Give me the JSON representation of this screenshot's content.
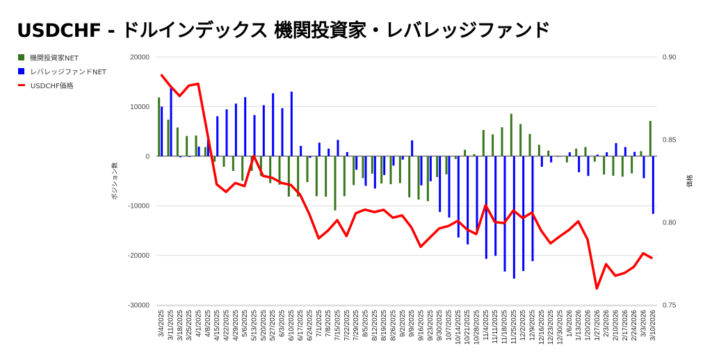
{
  "title": "USDCHF - ドルインデックス 機関投資家・レバレッジファンド",
  "colors": {
    "institutional": "#38761d",
    "leveraged": "#0000ff",
    "price": "#ff0000"
  },
  "chart_data": {
    "type": "bar+line",
    "title": "USDCHF - ドルインデックス 機関投資家・レバレッジファンド",
    "ylabel_left": "ポジション数",
    "ylabel_right": "価格",
    "ylim_left": [
      -30000,
      20000
    ],
    "yticks_left": [
      "20000",
      "10000",
      "0",
      "-10000",
      "-20000",
      "-30000"
    ],
    "ylim_right": [
      0.75,
      0.9
    ],
    "yticks_right": [
      "0.90",
      "0.85",
      "0.80",
      "0.75"
    ],
    "legend_position": "top-left",
    "categories": [
      "3/4/2025",
      "3/11/2025",
      "3/18/2025",
      "3/25/2025",
      "4/1/2025",
      "4/8/2025",
      "4/15/2025",
      "4/22/2025",
      "4/29/2025",
      "5/6/2025",
      "5/13/2025",
      "5/20/2025",
      "5/27/2025",
      "6/3/2025",
      "6/10/2025",
      "6/17/2025",
      "6/24/2025",
      "7/1/2025",
      "7/8/2025",
      "7/15/2025",
      "7/22/2025",
      "7/29/2025",
      "8/5/2025",
      "8/12/2025",
      "8/19/2025",
      "8/26/2025",
      "9/2/2025",
      "9/9/2025",
      "9/16/2025",
      "9/23/2025",
      "9/30/2025",
      "10/7/2025",
      "10/14/2025",
      "10/21/2025",
      "10/28/2025",
      "11/4/2025",
      "11/11/2025",
      "11/18/2025",
      "11/25/2025",
      "12/2/2025",
      "12/9/2025",
      "12/16/2025",
      "12/23/2025",
      "12/30/2025",
      "1/6/2026",
      "1/13/2026",
      "1/20/2026",
      "1/27/2026",
      "2/3/2026",
      "2/10/2026",
      "2/17/2026",
      "2/24/2026",
      "3/3/2026",
      "3/10/2026"
    ],
    "series": [
      {
        "name": "機関投資家NET",
        "type": "bar",
        "axis": "left",
        "values": [
          11850,
          7360,
          5790,
          4070,
          4170,
          1850,
          -1110,
          -2130,
          -2960,
          -4950,
          -2960,
          -3980,
          -5420,
          -5740,
          -8150,
          -8150,
          -5230,
          -8060,
          -8150,
          -10930,
          -8060,
          -5830,
          -4440,
          -3520,
          -5510,
          -5650,
          -5420,
          -8290,
          -8750,
          -9070,
          -4210,
          -3660,
          -560,
          1300,
          420,
          5280,
          4400,
          5830,
          8560,
          6480,
          4490,
          2310,
          1110,
          -140,
          -1250,
          1530,
          1850,
          -1110,
          -3700,
          -3940,
          -4120,
          -3470,
          1020,
          7130
        ]
      },
      {
        "name": "レバレッジファンドNET",
        "type": "bar",
        "axis": "left",
        "values": [
          10000,
          13700,
          -230,
          -140,
          1940,
          3520,
          8060,
          9440,
          10600,
          11900,
          8290,
          10280,
          12690,
          9680,
          13010,
          2080,
          -320,
          2730,
          1530,
          3290,
          830,
          -2730,
          -5970,
          -6530,
          -3800,
          -1900,
          -690,
          3190,
          -5880,
          -5050,
          -11250,
          -12360,
          -16390,
          -17780,
          -15320,
          -20690,
          -20090,
          -23240,
          -24680,
          -23150,
          -21160,
          -2130,
          -1250,
          0,
          790,
          -3240,
          -3980,
          320,
          790,
          2640,
          1850,
          880,
          -4440,
          -11620
        ]
      },
      {
        "name": "USDCHF価格",
        "type": "line",
        "axis": "right",
        "values": [
          0.8894,
          0.8824,
          0.8764,
          0.8827,
          0.8838,
          0.8537,
          0.823,
          0.8184,
          0.8238,
          0.8219,
          0.8402,
          0.8281,
          0.8269,
          0.8238,
          0.8226,
          0.8167,
          0.8049,
          0.7903,
          0.795,
          0.8013,
          0.7917,
          0.8055,
          0.8077,
          0.8062,
          0.8076,
          0.8028,
          0.8042,
          0.797,
          0.7852,
          0.7908,
          0.7963,
          0.7978,
          0.8009,
          0.7957,
          0.7929,
          0.8104,
          0.8002,
          0.7995,
          0.8072,
          0.8026,
          0.8059,
          0.795,
          0.7873,
          0.7915,
          0.7954,
          0.8006,
          0.7897,
          0.76,
          0.7747,
          0.7677,
          0.7694,
          0.7731,
          0.7813,
          0.7782
        ]
      }
    ]
  }
}
